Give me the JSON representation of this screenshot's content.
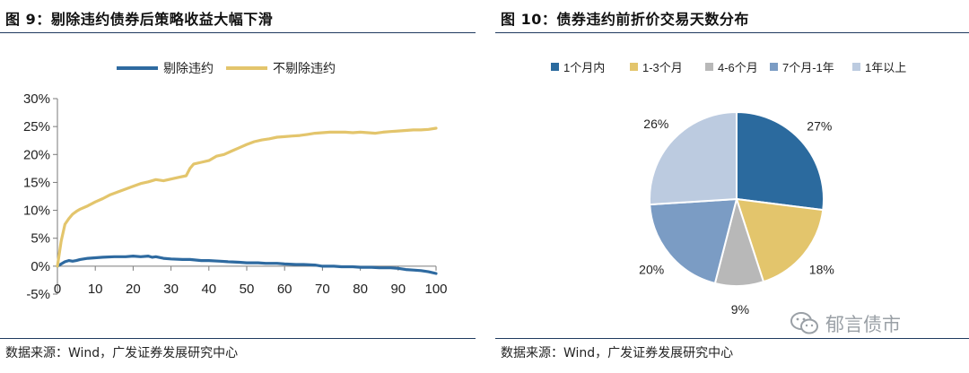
{
  "left": {
    "title": "图 9：剔除违约债券后策略收益大幅下滑",
    "source": "数据来源：Wind，广发证券发展研究中心"
  },
  "right": {
    "title": "图 10：债券违约前折价交易天数分布",
    "source": "数据来源：Wind，广发证券发展研究中心"
  },
  "watermark": {
    "text": "郁言债市",
    "icon": "wechat-icon"
  },
  "colors": {
    "blue": "#2e6aa0",
    "gold": "#e3c56c",
    "rule": "#1f3a5f"
  },
  "chart_data": [
    {
      "type": "line",
      "ylim": [
        -5,
        30
      ],
      "xlim": [
        0,
        100
      ],
      "y_ticks": [
        -5,
        0,
        5,
        10,
        15,
        20,
        25,
        30
      ],
      "y_tick_labels": [
        "-5%",
        "0%",
        "5%",
        "10%",
        "15%",
        "20%",
        "25%",
        "30%"
      ],
      "x_ticks": [
        0,
        10,
        20,
        30,
        40,
        50,
        60,
        70,
        80,
        90,
        100
      ],
      "x_tick_labels": [
        "0",
        "10",
        "20",
        "30",
        "40",
        "50",
        "60",
        "70",
        "80",
        "90",
        "100"
      ],
      "legend_position": "top",
      "series": [
        {
          "name": "剔除违约",
          "color": "#2e6aa0",
          "x": [
            0,
            1,
            2,
            3,
            4,
            5,
            6,
            8,
            10,
            12,
            15,
            18,
            20,
            22,
            24,
            25,
            26,
            28,
            30,
            33,
            35,
            38,
            40,
            43,
            45,
            48,
            50,
            53,
            55,
            58,
            60,
            63,
            65,
            68,
            70,
            73,
            75,
            78,
            80,
            83,
            85,
            88,
            90,
            92,
            94,
            96,
            98,
            100
          ],
          "y": [
            0,
            0.4,
            0.8,
            1.0,
            0.9,
            1.0,
            1.2,
            1.4,
            1.5,
            1.6,
            1.7,
            1.7,
            1.8,
            1.7,
            1.8,
            1.6,
            1.7,
            1.4,
            1.3,
            1.2,
            1.2,
            1.0,
            1.0,
            0.9,
            0.8,
            0.7,
            0.6,
            0.6,
            0.5,
            0.5,
            0.4,
            0.3,
            0.3,
            0.2,
            0.0,
            0.0,
            -0.1,
            -0.1,
            -0.2,
            -0.2,
            -0.3,
            -0.3,
            -0.4,
            -0.6,
            -0.7,
            -0.8,
            -1.0,
            -1.3
          ]
        },
        {
          "name": "不剔除违约",
          "color": "#e3c56c",
          "x": [
            0,
            1,
            2,
            3,
            4,
            5,
            6,
            8,
            10,
            12,
            14,
            16,
            18,
            20,
            22,
            24,
            26,
            28,
            30,
            32,
            34,
            35,
            36,
            38,
            40,
            42,
            44,
            46,
            48,
            50,
            52,
            54,
            56,
            58,
            60,
            62,
            64,
            66,
            68,
            70,
            72,
            74,
            76,
            78,
            80,
            82,
            84,
            86,
            88,
            90,
            92,
            94,
            96,
            98,
            100
          ],
          "y": [
            0,
            4.5,
            7.5,
            8.5,
            9.3,
            9.8,
            10.2,
            10.8,
            11.5,
            12.1,
            12.8,
            13.3,
            13.8,
            14.3,
            14.8,
            15.1,
            15.5,
            15.3,
            15.6,
            15.9,
            16.2,
            17.5,
            18.3,
            18.6,
            18.9,
            19.7,
            20.0,
            20.6,
            21.2,
            21.8,
            22.3,
            22.6,
            22.8,
            23.1,
            23.2,
            23.3,
            23.4,
            23.6,
            23.8,
            23.9,
            24.0,
            24.0,
            24.0,
            23.9,
            24.0,
            23.9,
            23.8,
            24.0,
            24.1,
            24.2,
            24.3,
            24.4,
            24.4,
            24.5,
            24.7
          ]
        }
      ]
    },
    {
      "type": "pie",
      "legend_position": "top",
      "slices": [
        {
          "label": "1个月内",
          "value": 27,
          "display": "27%",
          "color": "#2b6a9e"
        },
        {
          "label": "1-3个月",
          "value": 18,
          "display": "18%",
          "color": "#e3c56c"
        },
        {
          "label": "4-6个月",
          "value": 9,
          "display": "9%",
          "color": "#b8b8b8"
        },
        {
          "label": "7个月-1年",
          "value": 20,
          "display": "20%",
          "color": "#7b9cc4"
        },
        {
          "label": "1年以上",
          "value": 26,
          "display": "26%",
          "color": "#bccbe0"
        }
      ]
    }
  ]
}
